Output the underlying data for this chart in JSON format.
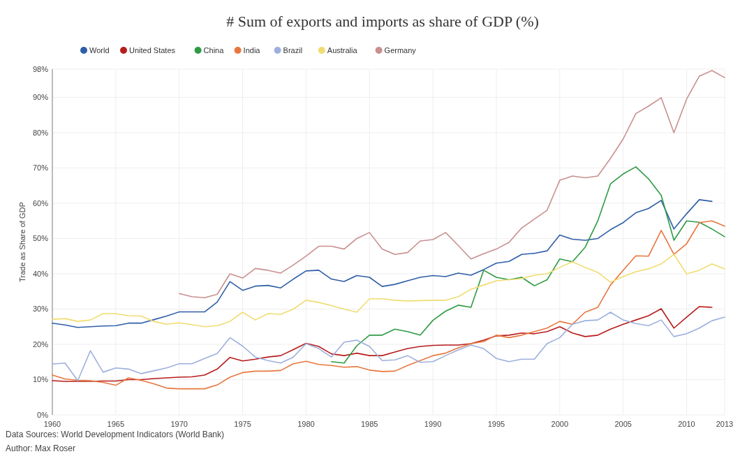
{
  "chart_data": {
    "type": "line",
    "title": "# Sum of exports and imports as share of GDP (%)",
    "ylabel": "Trade as Share of GDP",
    "x": [
      1960,
      1961,
      1962,
      1963,
      1964,
      1965,
      1966,
      1967,
      1968,
      1969,
      1970,
      1971,
      1972,
      1973,
      1974,
      1975,
      1976,
      1977,
      1978,
      1979,
      1980,
      1981,
      1982,
      1983,
      1984,
      1985,
      1986,
      1987,
      1988,
      1989,
      1990,
      1991,
      1992,
      1993,
      1994,
      1995,
      1996,
      1997,
      1998,
      1999,
      2000,
      2001,
      2002,
      2003,
      2004,
      2005,
      2006,
      2007,
      2008,
      2009,
      2010,
      2011,
      2012,
      2013
    ],
    "series": [
      {
        "name": "World",
        "color": "#2e5ea8",
        "values": [
          26,
          25.5,
          24.8,
          25,
          25.2,
          25.3,
          26,
          26,
          27,
          28,
          29.2,
          29.2,
          29.2,
          32,
          37.8,
          35.3,
          36.5,
          36.7,
          36,
          38.5,
          40.8,
          41,
          38.5,
          37.8,
          39.5,
          39,
          36.4,
          37,
          38,
          39,
          39.5,
          39.2,
          40.2,
          39.6,
          41.2,
          43,
          43.5,
          45.5,
          45.8,
          46.5,
          51,
          49.8,
          49.5,
          50,
          52.5,
          54.5,
          57.3,
          58.5,
          60.8,
          52.7,
          57,
          61,
          60.5,
          null
        ]
      },
      {
        "name": "United States",
        "color": "#b81c1c",
        "values": [
          9.7,
          9.5,
          9.5,
          9.5,
          9.6,
          9.6,
          10,
          10,
          10.3,
          10.5,
          10.7,
          10.8,
          11.3,
          13,
          16.3,
          15.3,
          15.8,
          16.4,
          16.8,
          18.5,
          20.3,
          19.4,
          17.3,
          16.8,
          17.5,
          16.8,
          16.8,
          17.8,
          18.8,
          19.4,
          19.7,
          19.8,
          19.8,
          20.2,
          21.2,
          22.4,
          22.6,
          23.2,
          23,
          23.6,
          25,
          23.2,
          22.2,
          22.6,
          24.3,
          25.7,
          26.9,
          28.1,
          30.1,
          24.6,
          27.7,
          30.7,
          30.5,
          null
        ]
      },
      {
        "name": "China",
        "color": "#2e9a44",
        "values": [
          null,
          null,
          null,
          null,
          null,
          null,
          null,
          null,
          null,
          null,
          null,
          null,
          null,
          null,
          null,
          null,
          null,
          null,
          null,
          null,
          null,
          null,
          15.1,
          14.7,
          19.6,
          22.6,
          22.6,
          24.3,
          23.6,
          22.6,
          26.8,
          29.4,
          31.1,
          30.5,
          41,
          39,
          38.3,
          39,
          36.6,
          38.3,
          44.2,
          43.4,
          47.5,
          55,
          65.5,
          68.3,
          70.3,
          66.9,
          62.2,
          49.5,
          55,
          54.6,
          52.7,
          50.5
        ]
      },
      {
        "name": "India",
        "color": "#e8773e",
        "values": [
          11.3,
          10.2,
          9.8,
          9.7,
          9.2,
          8.4,
          10.5,
          9.8,
          8.8,
          7.6,
          7.4,
          7.4,
          7.4,
          8.5,
          10.7,
          12,
          12.4,
          12.4,
          12.6,
          14.5,
          15.2,
          14.3,
          14,
          13.5,
          13.7,
          12.7,
          12.3,
          12.4,
          14,
          15.4,
          16.8,
          17.5,
          19,
          20.2,
          20.8,
          22.6,
          21.9,
          22.6,
          23.6,
          24.6,
          26.5,
          25.7,
          29.1,
          30.5,
          36.8,
          41,
          45.1,
          45,
          52.3,
          45.5,
          48.5,
          54.5,
          55,
          53.5
        ]
      },
      {
        "name": "Brazil",
        "color": "#9db0dc",
        "values": [
          14.4,
          14.7,
          9.7,
          18.2,
          12.1,
          13.3,
          13,
          11.7,
          12.5,
          13.3,
          14.5,
          14.5,
          16,
          17.4,
          21.9,
          19.5,
          16.4,
          15.4,
          14.7,
          16.4,
          20.2,
          18.8,
          16.4,
          20.6,
          21.2,
          19.4,
          15.4,
          15.6,
          16.8,
          14.9,
          15.1,
          16.8,
          18.4,
          19.8,
          18.8,
          16,
          15.1,
          15.8,
          15.8,
          20.2,
          21.9,
          25.7,
          26.7,
          26.9,
          29.1,
          26.9,
          25.9,
          25.3,
          26.9,
          22.2,
          23,
          24.6,
          26.7,
          27.7
        ]
      },
      {
        "name": "Australia",
        "color": "#f0dc70",
        "values": [
          27.1,
          27.3,
          26.5,
          26.9,
          28.7,
          28.7,
          28.1,
          28,
          26.5,
          25.7,
          26.1,
          25.6,
          25,
          25.3,
          26.5,
          29.1,
          26.9,
          28.7,
          28.5,
          30,
          32.5,
          31.9,
          31,
          30,
          29.1,
          32.9,
          32.9,
          32.5,
          32.3,
          32.4,
          32.5,
          32.5,
          33.5,
          35.6,
          36.8,
          38,
          38.3,
          38.6,
          39.6,
          40,
          41.8,
          43.4,
          41.8,
          40.4,
          37.6,
          39.2,
          40.6,
          41.4,
          42.8,
          45.5,
          40,
          41,
          42.8,
          41.4
        ]
      },
      {
        "name": "Germany",
        "color": "#c98f8f",
        "values": [
          null,
          null,
          null,
          null,
          null,
          null,
          null,
          null,
          null,
          null,
          34.4,
          33.5,
          33.2,
          34.2,
          40,
          38.8,
          41.5,
          41,
          40.2,
          42.5,
          45,
          47.8,
          47.8,
          47,
          50,
          51.7,
          47,
          45.5,
          46,
          49.3,
          49.7,
          51.7,
          48,
          44.2,
          45.7,
          47,
          48.9,
          53,
          55.5,
          58,
          66.5,
          67.7,
          67.2,
          67.7,
          72.7,
          78.2,
          85.4,
          87.5,
          89.9,
          80,
          89.5,
          96,
          97.6,
          95.6
        ]
      }
    ],
    "xlim": [
      1960,
      2013
    ],
    "xticks": [
      1960,
      1965,
      1970,
      1975,
      1980,
      1985,
      1990,
      1995,
      2000,
      2005,
      2010,
      2013
    ],
    "ylim": [
      0,
      98
    ],
    "yticks": [
      {
        "value": 0,
        "label": "0%"
      },
      {
        "value": 10,
        "label": "10%"
      },
      {
        "value": 20,
        "label": "20%"
      },
      {
        "value": 30,
        "label": "30%"
      },
      {
        "value": 40,
        "label": "40%"
      },
      {
        "value": 50,
        "label": "50%"
      },
      {
        "value": 60,
        "label": "60%"
      },
      {
        "value": 70,
        "label": "70%"
      },
      {
        "value": 80,
        "label": "80%"
      },
      {
        "value": 90,
        "label": "90%"
      },
      {
        "value": 98,
        "label": "98%"
      }
    ],
    "grid": true,
    "legend": "top",
    "marker": "none",
    "line_style": "solid",
    "annotations": [
      "Data Sources: World Development Indicators (World Bank)",
      "Author: Max Roser"
    ]
  }
}
